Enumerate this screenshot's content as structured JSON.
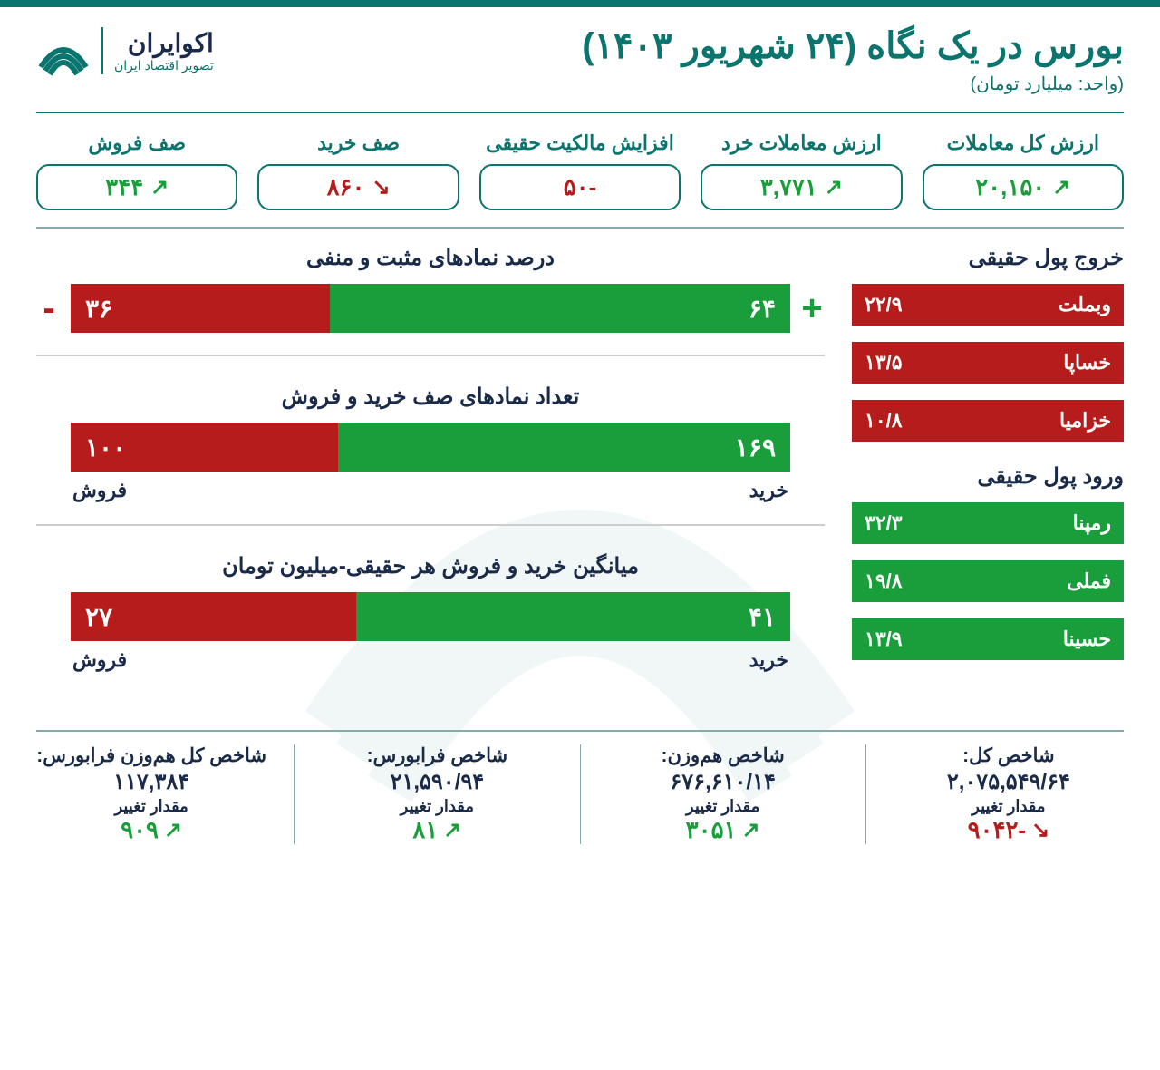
{
  "header": {
    "title": "بورس در یک نگاه (۲۴ شهریور ۱۴۰۳)",
    "subtitle": "(واحد: میلیارد تومان)",
    "logo_name": "اکوایران",
    "logo_tag": "تصویر اقتصاد ایران"
  },
  "colors": {
    "teal": "#0a746f",
    "green": "#1a9e3c",
    "red": "#b71c1c",
    "dark": "#1a2b4a",
    "white": "#ffffff"
  },
  "metrics": [
    {
      "label": "ارزش کل معاملات",
      "value": "۲۰,۱۵۰",
      "trend": "up"
    },
    {
      "label": "ارزش معاملات خرد",
      "value": "۳,۷۷۱",
      "trend": "up"
    },
    {
      "label": "افزایش مالکیت حقیقی",
      "value": "-۵۰",
      "trend": "neutral"
    },
    {
      "label": "صف خرید",
      "value": "۸۶۰",
      "trend": "down"
    },
    {
      "label": "صف فروش",
      "value": "۳۴۴",
      "trend": "up"
    }
  ],
  "outflow": {
    "title": "خروج پول حقیقی",
    "items": [
      {
        "name": "وبملت",
        "value": "۲۲/۹"
      },
      {
        "name": "خساپا",
        "value": "۱۳/۵"
      },
      {
        "name": "خزامیا",
        "value": "۱۰/۸"
      }
    ]
  },
  "inflow": {
    "title": "ورود پول حقیقی",
    "items": [
      {
        "name": "رمپنا",
        "value": "۳۲/۳"
      },
      {
        "name": "فملی",
        "value": "۱۹/۸"
      },
      {
        "name": "حسینا",
        "value": "۱۳/۹"
      }
    ]
  },
  "charts": {
    "pct": {
      "title": "درصد نمادهای مثبت و منفی",
      "green_val": "۶۴",
      "green_pct": 64,
      "red_val": "۳۶",
      "red_pct": 36,
      "show_signs": true
    },
    "queue": {
      "title": "تعداد نمادهای صف خرید و فروش",
      "green_val": "۱۶۹",
      "green_pct": 62.8,
      "red_val": "۱۰۰",
      "red_pct": 37.2,
      "green_label": "خرید",
      "red_label": "فروش"
    },
    "avg": {
      "title": "میانگین خرید و فروش هر حقیقی-میلیون تومان",
      "green_val": "۴۱",
      "green_pct": 60.3,
      "red_val": "۲۷",
      "red_pct": 39.7,
      "green_label": "خرید",
      "red_label": "فروش"
    }
  },
  "indices": [
    {
      "title": "شاخص کل:",
      "value": "۲,۰۷۵,۵۴۹/۶۴",
      "change_label": "مقدار تغییر",
      "change": "-۹۰۴۲",
      "trend": "down"
    },
    {
      "title": "شاخص هم‌وزن:",
      "value": "۶۷۶,۶۱۰/۱۴",
      "change_label": "مقدار تغییر",
      "change": "۳۰۵۱",
      "trend": "up"
    },
    {
      "title": "شاخص فرابورس:",
      "value": "۲۱,۵۹۰/۹۴",
      "change_label": "مقدار تغییر",
      "change": "۸۱",
      "trend": "up"
    },
    {
      "title": "شاخص کل هم‌وزن فرابورس:",
      "value": "۱۱۷,۳۸۴",
      "change_label": "مقدار تغییر",
      "change": "۹۰۹",
      "trend": "up"
    }
  ]
}
